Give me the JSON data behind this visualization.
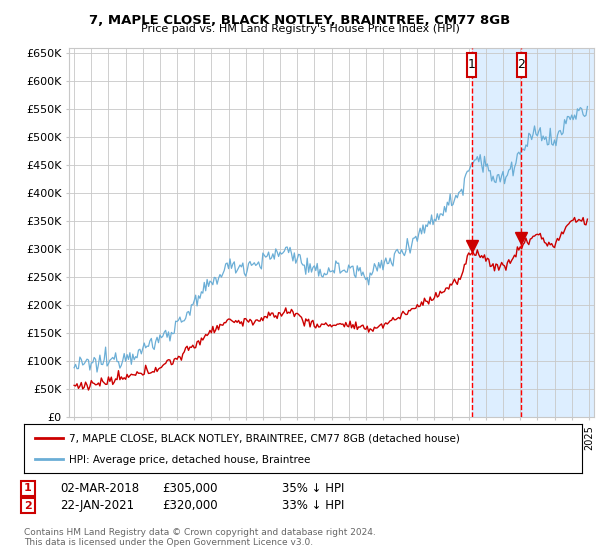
{
  "title": "7, MAPLE CLOSE, BLACK NOTLEY, BRAINTREE, CM77 8GB",
  "subtitle": "Price paid vs. HM Land Registry's House Price Index (HPI)",
  "ylim": [
    0,
    660000
  ],
  "yticks": [
    0,
    50000,
    100000,
    150000,
    200000,
    250000,
    300000,
    350000,
    400000,
    450000,
    500000,
    550000,
    600000,
    650000
  ],
  "ytick_labels": [
    "£0",
    "£50K",
    "£100K",
    "£150K",
    "£200K",
    "£250K",
    "£300K",
    "£350K",
    "£400K",
    "£450K",
    "£500K",
    "£550K",
    "£600K",
    "£650K"
  ],
  "sale1": {
    "date_num": 2018.17,
    "price": 305000,
    "label": "1",
    "date_str": "02-MAR-2018"
  },
  "sale2": {
    "date_num": 2021.06,
    "price": 320000,
    "label": "2",
    "date_str": "22-JAN-2021"
  },
  "legend1": "7, MAPLE CLOSE, BLACK NOTLEY, BRAINTREE, CM77 8GB (detached house)",
  "legend2": "HPI: Average price, detached house, Braintree",
  "footer": "Contains HM Land Registry data © Crown copyright and database right 2024.\nThis data is licensed under the Open Government Licence v3.0.",
  "hpi_color": "#6baed6",
  "price_color": "#cc0000",
  "vline_color": "#ff0000",
  "shade_color": "#ddeeff",
  "grid_color": "#c8c8c8",
  "background_color": "#ffffff",
  "box_color": "#cc0000",
  "xmin": 1994.7,
  "xmax": 2025.3
}
